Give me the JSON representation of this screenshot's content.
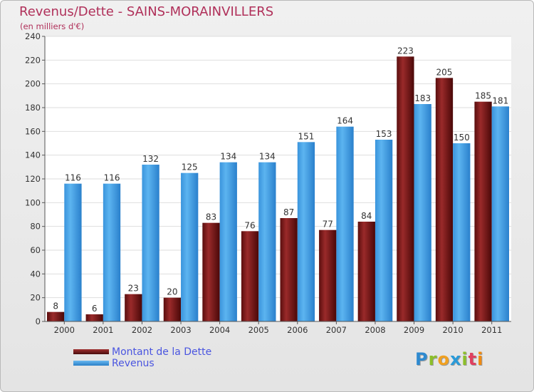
{
  "title": "Revenus/Dette - SAINS-MORAINVILLERS",
  "subtitle": "(en milliers d'€)",
  "logo": {
    "letters": [
      "P",
      "r",
      "o",
      "x",
      "i",
      "t",
      "i"
    ],
    "colors": [
      "#2e8ad0",
      "#8cbf2a",
      "#f0a020",
      "#2a9ad8",
      "#8cbf2a",
      "#e04060",
      "#f08a10"
    ]
  },
  "chart_data": {
    "type": "bar",
    "title": "Revenus/Dette - SAINS-MORAINVILLERS",
    "subtitle": "(en milliers d'€)",
    "categories": [
      "2000",
      "2001",
      "2002",
      "2003",
      "2004",
      "2005",
      "2006",
      "2007",
      "2008",
      "2009",
      "2010",
      "2011"
    ],
    "series": [
      {
        "name": "Montant de la Dette",
        "color": "#7a1a1a",
        "values": [
          8,
          6,
          23,
          20,
          83,
          76,
          87,
          77,
          84,
          223,
          205,
          185
        ]
      },
      {
        "name": "Revenus",
        "color": "#4aa3e8",
        "values": [
          116,
          116,
          132,
          125,
          134,
          134,
          151,
          164,
          153,
          183,
          150,
          181
        ]
      }
    ],
    "yticks": [
      0,
      20,
      40,
      60,
      80,
      100,
      120,
      140,
      160,
      180,
      200,
      220,
      240
    ],
    "ylim": [
      0,
      240
    ],
    "grid": true,
    "legend_position": "bottom-left"
  }
}
